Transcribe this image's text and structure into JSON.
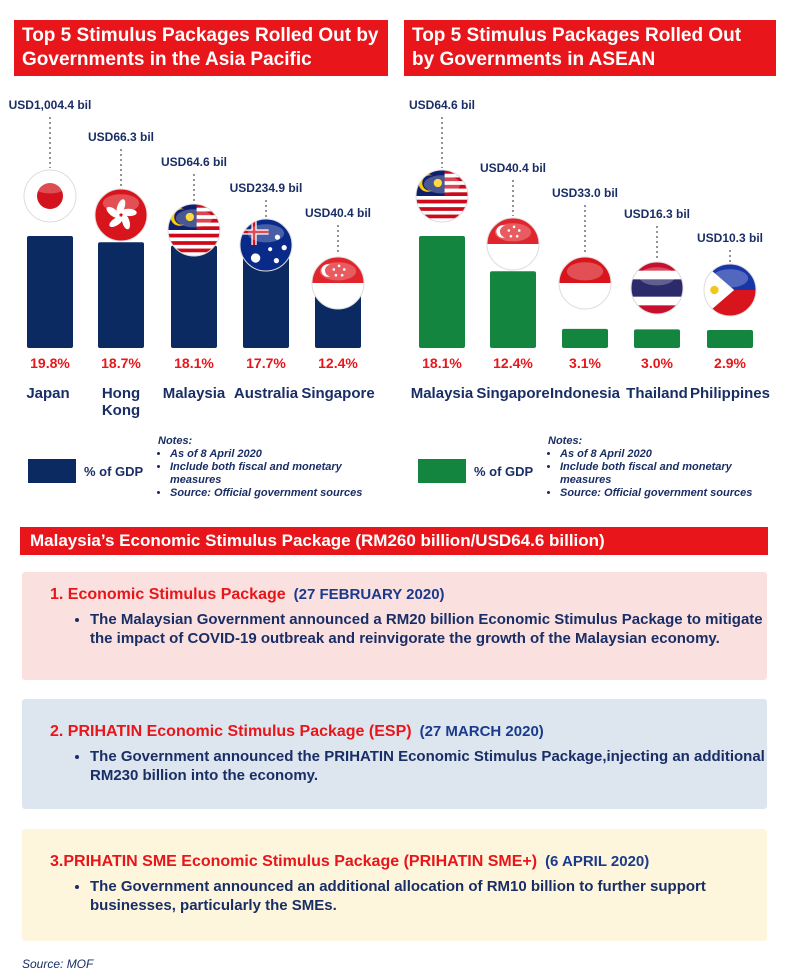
{
  "colors": {
    "asia_bar": "#0b2a62",
    "asean_bar": "#14853f",
    "accent": "#e8161b",
    "text": "#1a2e66"
  },
  "chart_data": [
    {
      "type": "bar",
      "title": "Top 5 Stimulus Packages Rolled Out by Governments in the Asia Pacific",
      "categories": [
        "Japan",
        "Hong Kong",
        "Malaysia",
        "Australia",
        "Singapore"
      ],
      "series": [
        {
          "name": "% of GDP",
          "values": [
            19.8,
            18.7,
            18.1,
            17.7,
            12.4
          ]
        }
      ],
      "value_labels": [
        "19.8%",
        "18.7%",
        "18.1%",
        "17.7%",
        "12.4%"
      ],
      "amount_labels": [
        "USD1,004.4 bil",
        "USD66.3 bil",
        "USD64.6 bil",
        "USD234.9 bil",
        "USD40.4 bil"
      ],
      "flags": [
        "japan-flag-icon",
        "hong-kong-flag-icon",
        "malaysia-flag-icon",
        "australia-flag-icon",
        "singapore-flag-icon"
      ],
      "legend": "bottom-left"
    },
    {
      "type": "bar",
      "title": "Top 5 Stimulus Packages Rolled Out by Governments in ASEAN",
      "categories": [
        "Malaysia",
        "Singapore",
        "Indonesia",
        "Thailand",
        "Philippines"
      ],
      "series": [
        {
          "name": "% of GDP",
          "values": [
            18.1,
            12.4,
            3.1,
            3.0,
            2.9
          ]
        }
      ],
      "value_labels": [
        "18.1%",
        "12.4%",
        "3.1%",
        "3.0%",
        "2.9%"
      ],
      "amount_labels": [
        "USD64.6 bil",
        "USD40.4 bil",
        "USD33.0 bil",
        "USD16.3 bil",
        "USD10.3 bil"
      ],
      "flags": [
        "malaysia-flag-icon",
        "singapore-flag-icon",
        "indonesia-flag-icon",
        "thailand-flag-icon",
        "philippines-flag-icon"
      ],
      "legend": "bottom-left"
    }
  ],
  "left_panel": {
    "title": "Top 5 Stimulus Packages Rolled Out by Governments in the Asia Pacific",
    "legend_label": "% of GDP"
  },
  "right_panel": {
    "title": "Top 5 Stimulus Packages Rolled Out by Governments in ASEAN",
    "legend_label": "% of GDP"
  },
  "notes": {
    "heading": "Notes:",
    "items": [
      "As of 8 April 2020",
      "Include both fiscal and monetary measures",
      "Source: Official government sources"
    ]
  },
  "section": {
    "title": "Malaysia’s Economic Stimulus Package (RM260 billion/USD64.6 billion)",
    "packages": [
      {
        "title": "1. Economic Stimulus Package",
        "date": "(27 FEBRUARY 2020)",
        "text": "The Malaysian Government announced a RM20 billion Economic Stimulus Package to mitigate the impact of COVID-19 outbreak and reinvigorate the growth of the Malaysian economy.",
        "bg": "#fbe0e0"
      },
      {
        "title": "2. PRIHATIN Economic Stimulus Package (ESP)",
        "date": "(27 MARCH 2020)",
        "text": "The Government announced the PRIHATIN Economic Stimulus Package,injecting an additional RM230 billion into the economy.",
        "bg": "#dde5ef"
      },
      {
        "title": "3.PRIHATIN SME Economic Stimulus Package (PRIHATIN SME+)",
        "date": "(6 APRIL 2020)",
        "text": "The Government announced an additional allocation of RM10 billion to further support businesses, particularly the SMEs.",
        "bg": "#fdf6dc"
      }
    ]
  },
  "source": "Source: MOF"
}
